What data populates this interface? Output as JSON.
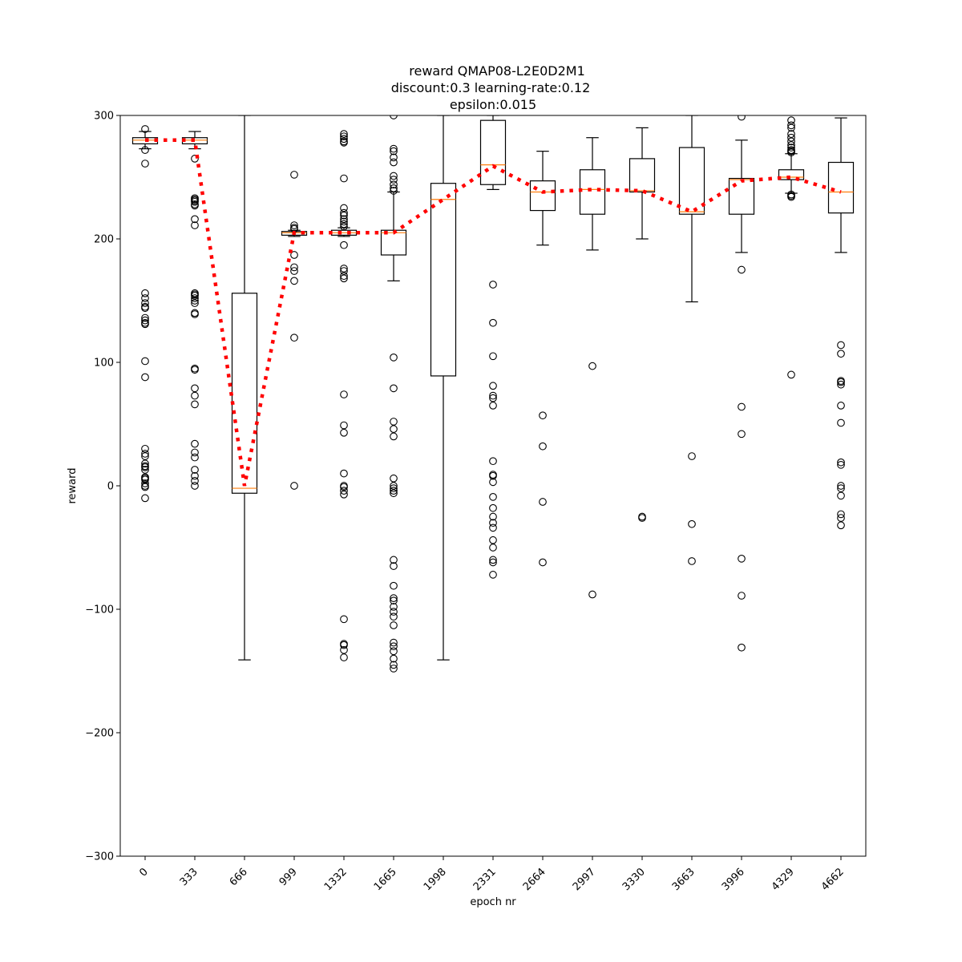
{
  "chart_data": {
    "type": "box",
    "title_lines": [
      "reward QMAP08-L2E0D2M1",
      "discount:0.3 learning-rate:0.12",
      "epsilon:0.015"
    ],
    "xlabel": "epoch nr",
    "ylabel": "reward",
    "ylim": [
      -300,
      300
    ],
    "yticks": [
      -300,
      -200,
      -100,
      0,
      100,
      200,
      300
    ],
    "categories": [
      "0",
      "333",
      "666",
      "999",
      "1332",
      "1665",
      "1998",
      "2331",
      "2664",
      "2997",
      "3330",
      "3663",
      "3996",
      "4329",
      "4662"
    ],
    "boxes": [
      {
        "q1": 277,
        "median": 280,
        "q3": 282,
        "whisker_low": 273,
        "whisker_high": 287,
        "fliers": [
          289,
          272,
          261,
          156,
          152,
          148,
          145,
          144,
          136,
          134,
          132,
          131,
          101,
          88,
          30,
          26,
          24,
          18,
          16,
          15,
          13,
          7,
          6,
          5,
          2,
          0,
          -1,
          -10
        ]
      },
      {
        "q1": 277,
        "median": 280,
        "q3": 282,
        "whisker_low": 273,
        "whisker_high": 287,
        "fliers": [
          265,
          233,
          232,
          231,
          230,
          228,
          227,
          216,
          211,
          156,
          155,
          154,
          152,
          150,
          148,
          140,
          139,
          95,
          94,
          79,
          73,
          66,
          34,
          27,
          23,
          13,
          8,
          4,
          0
        ]
      },
      {
        "q1": -6,
        "median": -2,
        "q3": 156,
        "whisker_low": -141,
        "whisker_high": 300,
        "fliers": []
      },
      {
        "q1": 203,
        "median": 205,
        "q3": 206,
        "whisker_low": 202,
        "whisker_high": 207,
        "fliers": [
          252,
          211,
          209,
          208,
          187,
          177,
          174,
          166,
          120,
          0
        ]
      },
      {
        "q1": 203,
        "median": 205,
        "q3": 207,
        "whisker_low": 202,
        "whisker_high": 209,
        "fliers": [
          285,
          283,
          281,
          279,
          278,
          249,
          225,
          221,
          219,
          216,
          214,
          212,
          210,
          195,
          176,
          174,
          170,
          168,
          74,
          49,
          43,
          10,
          0,
          -1,
          -4,
          -7,
          -108,
          -128,
          -129,
          -133,
          -139
        ]
      },
      {
        "q1": 187,
        "median": 205,
        "q3": 207,
        "whisker_low": 166,
        "whisker_high": 238,
        "fliers": [
          300,
          273,
          271,
          266,
          262,
          251,
          248,
          244,
          241,
          239,
          104,
          79,
          52,
          46,
          40,
          6,
          0,
          -2,
          -4,
          -6,
          -60,
          -65,
          -81,
          -91,
          -93,
          -98,
          -102,
          -106,
          -113,
          -127,
          -130,
          -134,
          -140,
          -145,
          -148
        ]
      },
      {
        "q1": 89,
        "median": 232,
        "q3": 245,
        "whisker_low": -141,
        "whisker_high": 300,
        "fliers": []
      },
      {
        "q1": 244,
        "median": 260,
        "q3": 296,
        "whisker_low": 240,
        "whisker_high": 300,
        "fliers": [
          163,
          132,
          105,
          81,
          73,
          71,
          65,
          20,
          9,
          8,
          3,
          -9,
          -18,
          -25,
          -30,
          -34,
          -44,
          -50,
          -60,
          -62,
          -72
        ]
      },
      {
        "q1": 223,
        "median": 238,
        "q3": 247,
        "whisker_low": 195,
        "whisker_high": 271,
        "fliers": [
          57,
          32,
          -13,
          -62
        ]
      },
      {
        "q1": 220,
        "median": 240,
        "q3": 256,
        "whisker_low": 191,
        "whisker_high": 282,
        "fliers": [
          97,
          -88
        ]
      },
      {
        "q1": 238,
        "median": 239,
        "q3": 265,
        "whisker_low": 200,
        "whisker_high": 290,
        "fliers": [
          -25,
          -26
        ]
      },
      {
        "q1": 220,
        "median": 222,
        "q3": 274,
        "whisker_low": 149,
        "whisker_high": 300,
        "fliers": [
          24,
          -31,
          -61
        ]
      },
      {
        "q1": 220,
        "median": 248,
        "q3": 249,
        "whisker_low": 189,
        "whisker_high": 280,
        "fliers": [
          299,
          175,
          64,
          42,
          -59,
          -89,
          -131
        ]
      },
      {
        "q1": 248,
        "median": 250,
        "q3": 256,
        "whisker_low": 237,
        "whisker_high": 269,
        "fliers": [
          296,
          292,
          290,
          285,
          282,
          279,
          276,
          274,
          272,
          271,
          270,
          236,
          235,
          234,
          90
        ]
      },
      {
        "q1": 221,
        "median": 238,
        "q3": 262,
        "whisker_low": 189,
        "whisker_high": 298,
        "fliers": [
          114,
          107,
          85,
          84,
          82,
          65,
          51,
          19,
          17,
          0,
          -2,
          -8,
          -23,
          -26,
          -32
        ]
      }
    ],
    "mean_line": {
      "values": [
        280,
        280,
        0,
        205,
        205,
        205,
        232,
        259,
        238,
        240,
        239,
        222,
        247,
        250,
        238
      ],
      "color": "#ff0000",
      "style": "dotted"
    },
    "colors": {
      "median": "#ff7f0e",
      "mean": "#ff0000",
      "box": "#000000"
    }
  }
}
